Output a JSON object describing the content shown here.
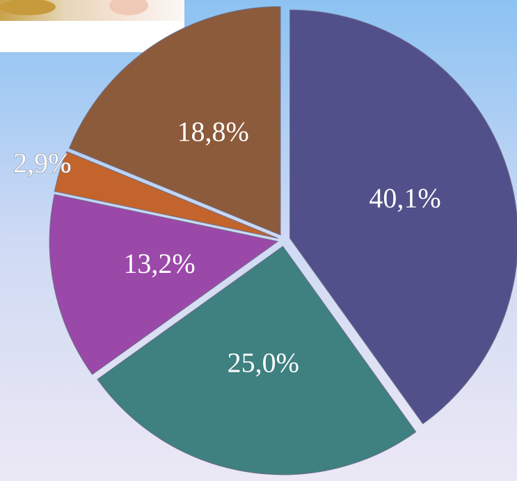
{
  "chart_data": {
    "type": "pie",
    "values": [
      40.1,
      25.0,
      13.2,
      2.9,
      18.8
    ],
    "value_labels": [
      "40,1%",
      "25,0%",
      "13,2%",
      "2,9%",
      "18,8%"
    ],
    "colors": [
      "#52508a",
      "#3f8080",
      "#9b49a8",
      "#c3642c",
      "#8c5b3b"
    ]
  }
}
